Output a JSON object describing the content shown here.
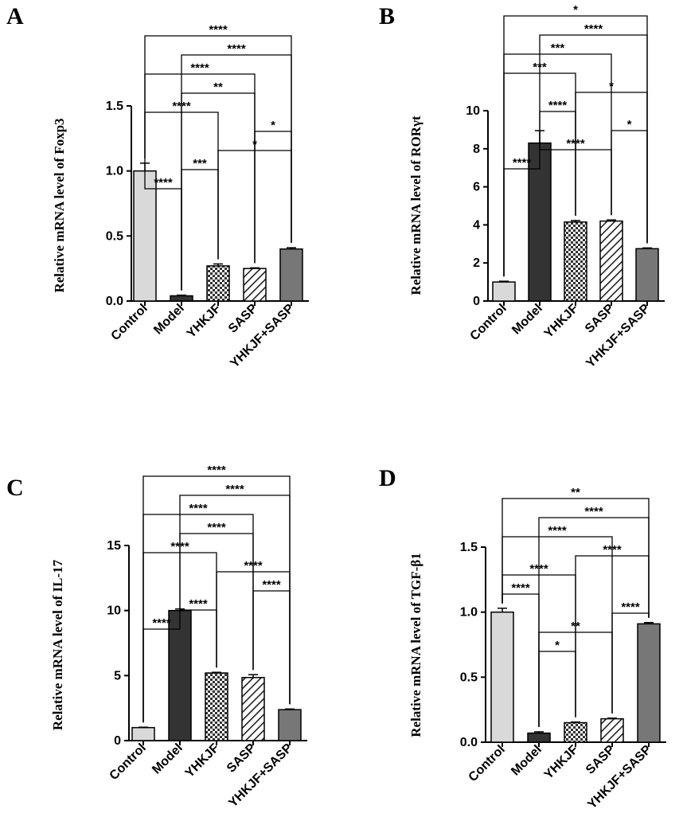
{
  "figure": {
    "title": ""
  },
  "chart_data": [
    {
      "type": "bar",
      "panel": "A",
      "ylabel": "Relative mRNA level of Foxp3",
      "categories": [
        "Control",
        "Model",
        "YHKJF",
        "SASP",
        "YHKJF+SASP"
      ],
      "values": [
        1.0,
        0.04,
        0.27,
        0.25,
        0.4
      ],
      "errors": [
        0.06,
        0.005,
        0.015,
        0.005,
        0.01
      ],
      "ylim": [
        0,
        1.5
      ],
      "yticks": [
        "0.0",
        "0.5",
        "1.0",
        "1.5"
      ],
      "ytick_values": [
        0,
        0.5,
        1.0,
        1.5
      ],
      "comparisons": [
        {
          "from": 0,
          "to": 1,
          "label": "****"
        },
        {
          "from": 1,
          "to": 2,
          "label": "***"
        },
        {
          "from": 2,
          "to": 4,
          "label": "*"
        },
        {
          "from": 3,
          "to": 4,
          "label": "*"
        },
        {
          "from": 0,
          "to": 2,
          "label": "****"
        },
        {
          "from": 1,
          "to": 3,
          "label": "**"
        },
        {
          "from": 0,
          "to": 3,
          "label": "****"
        },
        {
          "from": 1,
          "to": 4,
          "label": "****"
        },
        {
          "from": 0,
          "to": 4,
          "label": "****"
        }
      ]
    },
    {
      "type": "bar",
      "panel": "B",
      "ylabel": "Relative mRNA level of RORγt",
      "categories": [
        "Control",
        "Model",
        "YHKJF",
        "SASP",
        "YHKJF+SASP"
      ],
      "values": [
        1.0,
        8.3,
        4.15,
        4.2,
        2.75
      ],
      "errors": [
        0.04,
        0.65,
        0.08,
        0.06,
        0.04
      ],
      "ylim": [
        0,
        10
      ],
      "yticks": [
        "0",
        "2",
        "4",
        "6",
        "8",
        "10"
      ],
      "ytick_values": [
        0,
        2,
        4,
        6,
        8,
        10
      ],
      "comparisons": [
        {
          "from": 0,
          "to": 1,
          "label": "****"
        },
        {
          "from": 1,
          "to": 3,
          "label": "****"
        },
        {
          "from": 3,
          "to": 4,
          "label": "*"
        },
        {
          "from": 1,
          "to": 2,
          "label": "****"
        },
        {
          "from": 2,
          "to": 4,
          "label": "*"
        },
        {
          "from": 0,
          "to": 2,
          "label": "***"
        },
        {
          "from": 0,
          "to": 3,
          "label": "***"
        },
        {
          "from": 1,
          "to": 4,
          "label": "****"
        },
        {
          "from": 0,
          "to": 4,
          "label": "*"
        }
      ]
    },
    {
      "type": "bar",
      "panel": "C",
      "ylabel": "Relative mRNA level of IL-17",
      "categories": [
        "Control",
        "Model",
        "YHKJF",
        "SASP",
        "YHKJF+SASP"
      ],
      "values": [
        1.0,
        10.0,
        5.2,
        4.85,
        2.38
      ],
      "errors": [
        0.03,
        0.12,
        0.05,
        0.22,
        0.05
      ],
      "ylim": [
        0,
        15
      ],
      "yticks": [
        "0",
        "5",
        "10",
        "15"
      ],
      "ytick_values": [
        0,
        5,
        10,
        15
      ],
      "comparisons": [
        {
          "from": 0,
          "to": 1,
          "label": "****"
        },
        {
          "from": 1,
          "to": 2,
          "label": "****"
        },
        {
          "from": 3,
          "to": 4,
          "label": "****"
        },
        {
          "from": 2,
          "to": 4,
          "label": "****"
        },
        {
          "from": 0,
          "to": 2,
          "label": "****"
        },
        {
          "from": 1,
          "to": 3,
          "label": "****"
        },
        {
          "from": 0,
          "to": 3,
          "label": "****"
        },
        {
          "from": 1,
          "to": 4,
          "label": "****"
        },
        {
          "from": 0,
          "to": 4,
          "label": "****"
        }
      ]
    },
    {
      "type": "bar",
      "panel": "D",
      "ylabel": "Relative mRNA level of TGF-β1",
      "categories": [
        "Control",
        "Model",
        "YHKJF",
        "SASP",
        "YHKJF+SASP"
      ],
      "values": [
        1.0,
        0.07,
        0.15,
        0.18,
        0.91
      ],
      "errors": [
        0.03,
        0.01,
        0.005,
        0.005,
        0.01
      ],
      "ylim": [
        0,
        1.5
      ],
      "yticks": [
        "0.0",
        "0.5",
        "1.0",
        "1.5"
      ],
      "ytick_values": [
        0,
        0.5,
        1.0,
        1.5
      ],
      "comparisons": [
        {
          "from": 1,
          "to": 2,
          "label": "*"
        },
        {
          "from": 1,
          "to": 3,
          "label": "**"
        },
        {
          "from": 3,
          "to": 4,
          "label": "****"
        },
        {
          "from": 0,
          "to": 1,
          "label": "****"
        },
        {
          "from": 0,
          "to": 2,
          "label": "****"
        },
        {
          "from": 2,
          "to": 4,
          "label": "****"
        },
        {
          "from": 0,
          "to": 3,
          "label": "****"
        },
        {
          "from": 1,
          "to": 4,
          "label": "****"
        },
        {
          "from": 0,
          "to": 4,
          "label": "**"
        }
      ]
    }
  ]
}
